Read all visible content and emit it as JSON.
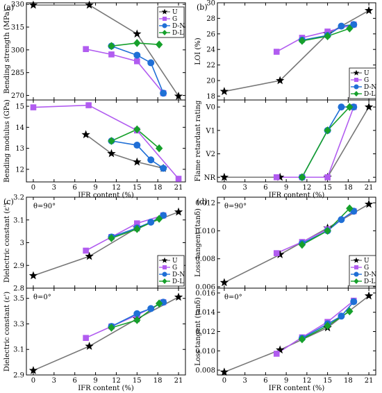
{
  "figure": {
    "panel_tags": [
      "(a)",
      "(b)",
      "(c)",
      "(d)"
    ],
    "legend": [
      "U",
      "G",
      "D-N",
      "D-L"
    ],
    "colors": {
      "U": "#000000",
      "G": "#b15cf0",
      "D-N": "#1f6fd6",
      "D-L": "#16a02b",
      "line_U": "#777777"
    },
    "markers": {
      "U": "star",
      "G": "square",
      "D-N": "circle",
      "D-L": "diamond"
    }
  },
  "chart_data": [
    {
      "type": "line",
      "panel": "(a)",
      "ylabel": "Bending strength (MPa)",
      "xlabel": "",
      "xlim": [
        -1,
        22
      ],
      "ylim": [
        267,
        331
      ],
      "yticks": [
        270,
        285,
        300,
        315,
        330
      ],
      "xticks": [],
      "show_legend": true,
      "series": [
        {
          "name": "U",
          "x": [
            0,
            8.1,
            15.0,
            21.0
          ],
          "y": [
            329.5,
            329.5,
            310.5,
            269.5
          ]
        },
        {
          "name": "G",
          "x": [
            7.6,
            11.3,
            15.0,
            18.8
          ],
          "y": [
            300.5,
            297.0,
            292.5,
            271.5
          ]
        },
        {
          "name": "D-N",
          "x": [
            11.3,
            15.0,
            17.0,
            18.8
          ],
          "y": [
            302.5,
            296.5,
            291.5,
            271.5
          ]
        },
        {
          "name": "D-L",
          "x": [
            11.3,
            15.0,
            18.2
          ],
          "y": [
            302.5,
            304.5,
            303.5
          ]
        }
      ]
    },
    {
      "type": "line",
      "panel": "",
      "ylabel": "Bending modulus (GPa)",
      "xlabel": "IFR content (%)",
      "xlim": [
        -1,
        22
      ],
      "ylim": [
        11.4,
        15.3
      ],
      "yticks": [
        12,
        13,
        14,
        15
      ],
      "xticks": [
        0,
        3,
        6,
        9,
        12,
        15,
        18,
        21
      ],
      "show_legend": false,
      "series": [
        {
          "name": "U",
          "x": [
            7.6,
            11.3,
            15.0,
            18.8
          ],
          "y": [
            13.65,
            12.75,
            12.35,
            12.05
          ]
        },
        {
          "name": "G",
          "x": [
            0,
            8.0,
            15.0,
            21.0
          ],
          "y": [
            14.95,
            15.05,
            13.85,
            11.55
          ]
        },
        {
          "name": "D-N",
          "x": [
            11.3,
            15.0,
            17.0,
            18.8
          ],
          "y": [
            13.35,
            13.15,
            12.45,
            12.05
          ]
        },
        {
          "name": "D-L",
          "x": [
            11.3,
            15.0,
            18.2
          ],
          "y": [
            13.35,
            13.9,
            13.0
          ]
        }
      ]
    },
    {
      "type": "line",
      "panel": "(b)",
      "ylabel": "LOI (%)",
      "xlabel": "",
      "xlim": [
        -1,
        22
      ],
      "ylim": [
        17.5,
        30.0
      ],
      "yticks": [
        18,
        20,
        22,
        24,
        26,
        28,
        30
      ],
      "xticks": [],
      "show_legend": true,
      "series": [
        {
          "name": "U",
          "x": [
            0,
            8.1,
            15.0,
            21.0
          ],
          "y": [
            18.6,
            20.0,
            26.0,
            29.0
          ]
        },
        {
          "name": "G",
          "x": [
            7.6,
            11.3,
            15.0,
            18.8
          ],
          "y": [
            23.7,
            25.5,
            26.3,
            27.2
          ]
        },
        {
          "name": "D-N",
          "x": [
            11.3,
            15.0,
            17.0,
            18.8
          ],
          "y": [
            25.2,
            25.8,
            27.0,
            27.2
          ]
        },
        {
          "name": "D-L",
          "x": [
            11.3,
            15.0,
            18.2
          ],
          "y": [
            25.1,
            25.7,
            26.7
          ]
        }
      ]
    },
    {
      "type": "line",
      "panel": "",
      "ylabel": "Flame retardant rating",
      "xlabel": "IFR content (%)",
      "xlim": [
        -1,
        22
      ],
      "ylim": [
        -0.2,
        3.3
      ],
      "yticks": [
        0,
        1,
        2,
        3
      ],
      "yticklabels": [
        "NR",
        "V2",
        "V1",
        "V0"
      ],
      "xticks": [
        0,
        3,
        6,
        9,
        12,
        15,
        18,
        21
      ],
      "show_legend": false,
      "series": [
        {
          "name": "U",
          "x": [
            0,
            8.1,
            15.0,
            21.0
          ],
          "y": [
            0,
            0,
            0,
            3
          ]
        },
        {
          "name": "G",
          "x": [
            7.6,
            11.3,
            15.0,
            18.8
          ],
          "y": [
            0,
            0,
            0,
            3
          ]
        },
        {
          "name": "D-N",
          "x": [
            11.3,
            15.0,
            17.0,
            18.8
          ],
          "y": [
            0,
            2,
            3,
            3
          ]
        },
        {
          "name": "D-L",
          "x": [
            11.3,
            15.0,
            18.2
          ],
          "y": [
            0,
            2,
            3
          ]
        }
      ]
    },
    {
      "type": "line",
      "panel": "(c)",
      "annotation": "θ=90°",
      "ylabel": "Dielectric constant (ε')",
      "xlabel": "",
      "xlim": [
        -1,
        22
      ],
      "ylim": [
        2.8,
        3.2
      ],
      "yticks": [
        2.8,
        2.9,
        3.0,
        3.1,
        3.2
      ],
      "xticks": [],
      "show_legend": true,
      "series": [
        {
          "name": "U",
          "x": [
            0,
            8.1,
            15.0,
            21.0
          ],
          "y": [
            2.855,
            2.94,
            3.065,
            3.135
          ]
        },
        {
          "name": "G",
          "x": [
            7.6,
            11.3,
            15.0,
            18.8
          ],
          "y": [
            2.965,
            3.025,
            3.085,
            3.12
          ]
        },
        {
          "name": "D-N",
          "x": [
            11.3,
            15.0,
            17.0,
            18.8
          ],
          "y": [
            3.025,
            3.065,
            3.09,
            3.12
          ]
        },
        {
          "name": "D-L",
          "x": [
            11.3,
            15.0,
            18.2
          ],
          "y": [
            3.02,
            3.06,
            3.105
          ]
        }
      ]
    },
    {
      "type": "line",
      "panel": "",
      "annotation": "θ=0°",
      "ylabel": "Dielectric constant (ε')",
      "xlabel": "IFR content (%)",
      "xlim": [
        -1,
        22
      ],
      "ylim": [
        2.9,
        3.58
      ],
      "yticks": [
        2.9,
        3.1,
        3.3,
        3.5
      ],
      "xticks": [
        0,
        3,
        6,
        9,
        12,
        15,
        18,
        21
      ],
      "show_legend": false,
      "series": [
        {
          "name": "U",
          "x": [
            0,
            8.1,
            15.0,
            21.0
          ],
          "y": [
            2.935,
            3.125,
            3.34,
            3.51
          ]
        },
        {
          "name": "G",
          "x": [
            7.6,
            11.3,
            15.0,
            18.8
          ],
          "y": [
            3.19,
            3.28,
            3.37,
            3.47
          ]
        },
        {
          "name": "D-N",
          "x": [
            11.3,
            15.0,
            17.0,
            18.8
          ],
          "y": [
            3.28,
            3.38,
            3.42,
            3.47
          ]
        },
        {
          "name": "D-L",
          "x": [
            11.3,
            15.0,
            18.2
          ],
          "y": [
            3.27,
            3.33,
            3.46
          ]
        }
      ]
    },
    {
      "type": "line",
      "panel": "(d)",
      "annotation": "θ=90°",
      "ylabel": "Loss tangent (tanδ)",
      "xlabel": "",
      "xlim": [
        -1,
        22
      ],
      "ylim": [
        0.0059,
        0.0124
      ],
      "yticks": [
        0.006,
        0.008,
        0.01,
        0.012
      ],
      "yticklabels": [
        "0.006",
        "0.008",
        "0.010",
        "0.012"
      ],
      "xticks": [],
      "show_legend": true,
      "series": [
        {
          "name": "U",
          "x": [
            0,
            8.1,
            15.0,
            21.0
          ],
          "y": [
            0.0063,
            0.0083,
            0.0102,
            0.0119
          ]
        },
        {
          "name": "G",
          "x": [
            7.6,
            11.3,
            15.0,
            18.8
          ],
          "y": [
            0.0084,
            0.0092,
            0.0101,
            0.0114
          ]
        },
        {
          "name": "D-N",
          "x": [
            11.3,
            15.0,
            17.0,
            18.8
          ],
          "y": [
            0.0091,
            0.01,
            0.0108,
            0.0114
          ]
        },
        {
          "name": "D-L",
          "x": [
            11.3,
            15.0,
            18.2
          ],
          "y": [
            0.009,
            0.01,
            0.0116
          ]
        }
      ]
    },
    {
      "type": "line",
      "panel": "",
      "annotation": "θ=0°",
      "ylabel": "Loss tangent (tanδ)",
      "xlabel": "IFR content (%)",
      "xlim": [
        -1,
        22
      ],
      "ylim": [
        0.0075,
        0.0165
      ],
      "yticks": [
        0.008,
        0.01,
        0.012,
        0.014,
        0.016
      ],
      "yticklabels": [
        "0.008",
        "0.010",
        "0.012",
        "0.014",
        "0.016"
      ],
      "xticks": [
        0,
        3,
        6,
        9,
        12,
        15,
        18,
        21
      ],
      "show_legend": false,
      "series": [
        {
          "name": "U",
          "x": [
            0,
            8.1,
            15.0,
            21.0
          ],
          "y": [
            0.0078,
            0.0101,
            0.0124,
            0.0157
          ]
        },
        {
          "name": "G",
          "x": [
            7.6,
            11.3,
            15.0,
            18.8
          ],
          "y": [
            0.0097,
            0.0114,
            0.013,
            0.0152
          ]
        },
        {
          "name": "D-N",
          "x": [
            11.3,
            15.0,
            17.0,
            18.8
          ],
          "y": [
            0.0113,
            0.0128,
            0.0136,
            0.0151
          ]
        },
        {
          "name": "D-L",
          "x": [
            11.3,
            15.0,
            18.2
          ],
          "y": [
            0.0112,
            0.0126,
            0.0141
          ]
        }
      ]
    }
  ]
}
